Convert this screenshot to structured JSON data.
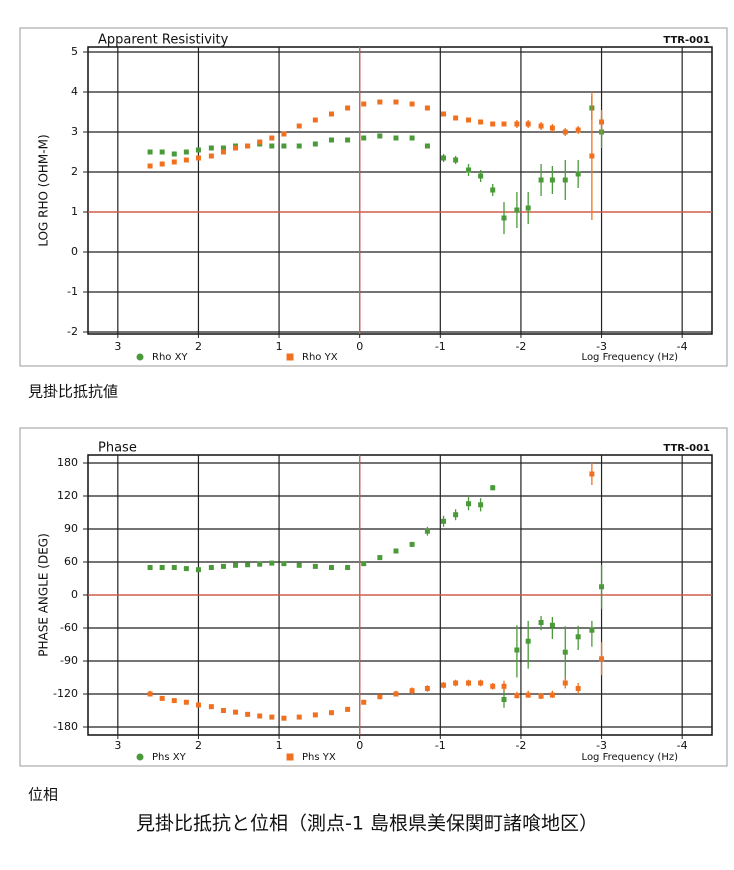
{
  "captions": {
    "resistivity": "見掛比抵抗値",
    "phase": "位相",
    "main": "見掛比抵抗と位相（測点-1 島根県美保関町諸喰地区）"
  },
  "chart_data": [
    {
      "type": "scatter",
      "title": "Apparent Resistivity",
      "station": "TTR-001",
      "ylabel": "LOG RHO (OHM-M)",
      "xlabel": "Log Frequency (Hz)",
      "x": [
        2.6,
        2.45,
        2.3,
        2.15,
        2.0,
        1.84,
        1.69,
        1.54,
        1.39,
        1.24,
        1.09,
        0.94,
        0.75,
        0.55,
        0.35,
        0.15,
        -0.05,
        -0.25,
        -0.45,
        -0.65,
        -0.84,
        -1.04,
        -1.19,
        -1.35,
        -1.5,
        -1.65,
        -1.79,
        -1.95,
        -2.09,
        -2.25,
        -2.39,
        -2.55,
        -2.71,
        -2.88,
        -3.0
      ],
      "xlim": [
        3.37,
        -4.37
      ],
      "xticks": [
        3,
        2,
        1,
        0,
        -1,
        -2,
        -3,
        -4
      ],
      "ylim": [
        -2,
        5
      ],
      "yticks": [
        5,
        4,
        3,
        2,
        1,
        0,
        -1,
        -2
      ],
      "y_scale": "linear",
      "grid": true,
      "reference_lines": {
        "x": 0,
        "y": 1,
        "color": "#e8604a"
      },
      "series": [
        {
          "name": "Rho XY",
          "color": "#4a9a3a",
          "legend_marker": "circle",
          "values": [
            2.5,
            2.5,
            2.45,
            2.5,
            2.55,
            2.6,
            2.6,
            2.65,
            2.65,
            2.7,
            2.65,
            2.65,
            2.65,
            2.7,
            2.8,
            2.8,
            2.85,
            2.9,
            2.85,
            2.85,
            2.65,
            2.35,
            2.3,
            2.05,
            1.9,
            1.55,
            0.85,
            1.05,
            1.1,
            1.8,
            1.8,
            1.8,
            1.95,
            3.6,
            3.0
          ],
          "errors": [
            0.05,
            0.05,
            0.05,
            0.05,
            0.05,
            0.05,
            0.05,
            0.05,
            0.05,
            0.05,
            0.05,
            0.05,
            0.05,
            0.05,
            0.05,
            0.05,
            0.05,
            0.05,
            0.05,
            0.05,
            0.05,
            0.1,
            0.1,
            0.15,
            0.15,
            0.15,
            0.4,
            0.45,
            0.4,
            0.4,
            0.35,
            0.5,
            0.35,
            0.3,
            0.4
          ]
        },
        {
          "name": "Rho YX",
          "color": "#f07020",
          "legend_marker": "square",
          "values": [
            2.15,
            2.2,
            2.25,
            2.3,
            2.35,
            2.4,
            2.5,
            2.6,
            2.65,
            2.75,
            2.85,
            2.95,
            3.15,
            3.3,
            3.45,
            3.6,
            3.7,
            3.75,
            3.75,
            3.7,
            3.6,
            3.45,
            3.35,
            3.3,
            3.25,
            3.2,
            3.2,
            3.2,
            3.2,
            3.15,
            3.1,
            3.0,
            3.05,
            2.4,
            3.25
          ],
          "errors": [
            0.05,
            0.05,
            0.05,
            0.05,
            0.05,
            0.05,
            0.05,
            0.05,
            0.05,
            0.05,
            0.05,
            0.05,
            0.05,
            0.05,
            0.05,
            0.05,
            0.05,
            0.05,
            0.05,
            0.05,
            0.05,
            0.05,
            0.05,
            0.05,
            0.05,
            0.05,
            0.05,
            0.1,
            0.1,
            0.1,
            0.1,
            0.1,
            0.1,
            1.6,
            0.3
          ]
        }
      ]
    },
    {
      "type": "scatter",
      "title": "Phase",
      "station": "TTR-001",
      "ylabel": "PHASE ANGLE (DEG)",
      "xlabel": "Log Frequency (Hz)",
      "x": [
        2.6,
        2.45,
        2.3,
        2.15,
        2.0,
        1.84,
        1.69,
        1.54,
        1.39,
        1.24,
        1.09,
        0.94,
        0.75,
        0.55,
        0.35,
        0.15,
        -0.05,
        -0.25,
        -0.45,
        -0.65,
        -0.84,
        -1.04,
        -1.19,
        -1.35,
        -1.5,
        -1.65,
        -1.79,
        -1.95,
        -2.09,
        -2.25,
        -2.39,
        -2.55,
        -2.71,
        -2.88,
        -3.0
      ],
      "xlim": [
        3.37,
        -4.37
      ],
      "xticks": [
        3,
        2,
        1,
        0,
        -1,
        -2,
        -3,
        -4
      ],
      "ylim": [
        -180,
        180
      ],
      "yticks": [
        180,
        120,
        90,
        60,
        0,
        -60,
        -90,
        -120,
        -180
      ],
      "y_scale": "tick-spaced",
      "grid": true,
      "reference_lines": {
        "x": 0,
        "y": 0,
        "color": "#e8604a"
      },
      "series": [
        {
          "name": "Phs XY",
          "color": "#4a9a3a",
          "legend_marker": "circle",
          "values": [
            50,
            50,
            50,
            48,
            46,
            50,
            52,
            54,
            55,
            56,
            58,
            57,
            54,
            52,
            50,
            50,
            57,
            64,
            70,
            76,
            88,
            97,
            103,
            113,
            112,
            135,
            -130,
            -80,
            -72,
            -50,
            -55,
            -82,
            -68,
            -62,
            15
          ],
          "errors": [
            2,
            2,
            2,
            2,
            2,
            2,
            2,
            2,
            2,
            2,
            2,
            2,
            2,
            2,
            2,
            2,
            2,
            2,
            2,
            2,
            4,
            5,
            5,
            6,
            6,
            5,
            15,
            25,
            25,
            12,
            15,
            25,
            12,
            15,
            40
          ]
        },
        {
          "name": "Phs YX",
          "color": "#f07020",
          "legend_marker": "square",
          "values": [
            -120,
            -128,
            -132,
            -135,
            -140,
            -143,
            -150,
            -153,
            -157,
            -160,
            -162,
            -164,
            -162,
            -158,
            -154,
            -148,
            -135,
            -125,
            -120,
            -117,
            -115,
            -112,
            -110,
            -110,
            -110,
            -113,
            -113,
            -123,
            -122,
            -124,
            -122,
            -110,
            -115,
            160,
            -88
          ],
          "errors": [
            3,
            3,
            3,
            3,
            3,
            3,
            3,
            3,
            3,
            3,
            3,
            3,
            3,
            3,
            3,
            3,
            3,
            3,
            3,
            3,
            3,
            3,
            3,
            3,
            3,
            3,
            5,
            5,
            5,
            5,
            5,
            5,
            5,
            20,
            15
          ]
        }
      ]
    }
  ]
}
